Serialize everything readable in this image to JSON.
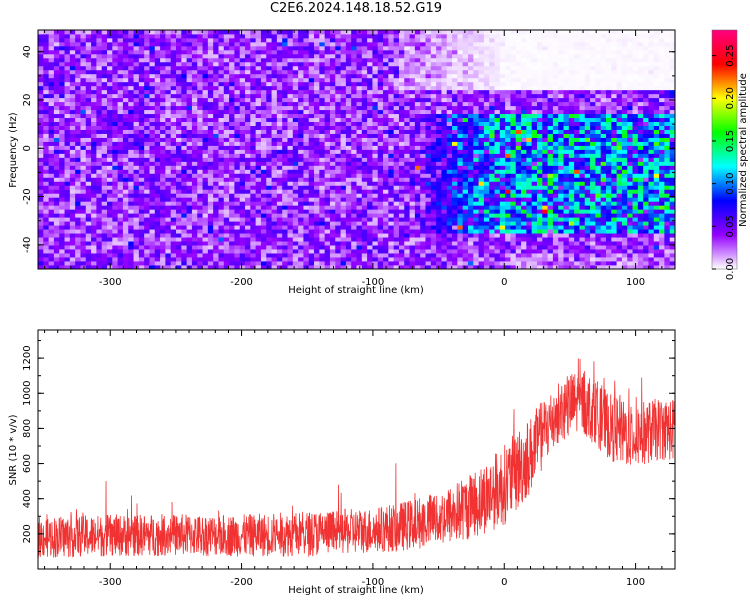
{
  "title": "C2E6.2024.148.18.52.G19",
  "chart_data": [
    {
      "type": "heatmap",
      "title": "",
      "xlabel": "Height of straight line (km)",
      "ylabel": "Frequency (Hz)",
      "xlim": [
        -355,
        130
      ],
      "ylim": [
        -50,
        49
      ],
      "xticks": [
        -300,
        -200,
        -100,
        0,
        100
      ],
      "yticks": [
        -40,
        -20,
        0,
        20,
        40
      ],
      "colorbar": {
        "label": "Normalized spectral amplitude",
        "range": [
          0,
          0.28
        ],
        "ticks": [
          "0.00",
          "0.05",
          "0.10",
          "0.15",
          "0.20",
          "0.25"
        ],
        "colors": [
          "#ffffff",
          "#9400ff",
          "#0000ff",
          "#00ffff",
          "#00ff00",
          "#ffff00",
          "#ff0000",
          "#ff0080"
        ]
      },
      "notes": {
        "background_amplitude": 0.03,
        "elevated_region_x": [
          -70,
          130
        ],
        "elevated_region_y": [
          -35,
          15
        ],
        "elevated_amplitude": 0.1,
        "white_region_x": [
          -80,
          130
        ],
        "white_region_y": [
          25,
          49
        ]
      }
    },
    {
      "type": "line",
      "title": "",
      "xlabel": "Height of straight line (km)",
      "ylabel": "SNR (10 * v/v)",
      "xlim": [
        -355,
        130
      ],
      "ylim": [
        0,
        1360
      ],
      "xticks": [
        -300,
        -200,
        -100,
        0,
        100
      ],
      "yticks": [
        200,
        400,
        600,
        800,
        1000,
        1200
      ],
      "series": [
        {
          "color": "#f03232",
          "x": [
            -355,
            -300,
            -250,
            -200,
            -150,
            -100,
            -80,
            -60,
            -40,
            -20,
            0,
            10,
            20,
            30,
            40,
            50,
            60,
            70,
            80,
            90,
            100,
            110,
            120,
            130
          ],
          "y_center": [
            180,
            190,
            195,
            190,
            200,
            220,
            240,
            270,
            310,
            380,
            480,
            560,
            650,
            780,
            880,
            930,
            950,
            890,
            810,
            770,
            760,
            780,
            800,
            790
          ],
          "y_spread": [
            120,
            120,
            120,
            120,
            130,
            130,
            140,
            150,
            170,
            200,
            230,
            240,
            220,
            200,
            190,
            190,
            190,
            190,
            190,
            190,
            190,
            180,
            180,
            180
          ]
        }
      ]
    }
  ]
}
